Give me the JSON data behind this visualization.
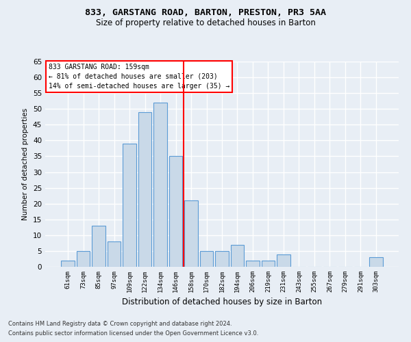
{
  "title": "833, GARSTANG ROAD, BARTON, PRESTON, PR3 5AA",
  "subtitle": "Size of property relative to detached houses in Barton",
  "xlabel": "Distribution of detached houses by size in Barton",
  "ylabel": "Number of detached properties",
  "categories": [
    "61sqm",
    "73sqm",
    "85sqm",
    "97sqm",
    "109sqm",
    "122sqm",
    "134sqm",
    "146sqm",
    "158sqm",
    "170sqm",
    "182sqm",
    "194sqm",
    "206sqm",
    "219sqm",
    "231sqm",
    "243sqm",
    "255sqm",
    "267sqm",
    "279sqm",
    "291sqm",
    "303sqm"
  ],
  "values": [
    2,
    5,
    13,
    8,
    39,
    49,
    52,
    35,
    21,
    5,
    5,
    7,
    2,
    2,
    4,
    0,
    0,
    0,
    0,
    0,
    3
  ],
  "bar_color": "#c9d9e8",
  "bar_edge_color": "#5b9bd5",
  "marker_index": 7.5,
  "ylim": [
    0,
    65
  ],
  "yticks": [
    0,
    5,
    10,
    15,
    20,
    25,
    30,
    35,
    40,
    45,
    50,
    55,
    60,
    65
  ],
  "background_color": "#e8eef5",
  "grid_color": "#ffffff",
  "annotation_line1": "833 GARSTANG ROAD: 159sqm",
  "annotation_line2": "← 81% of detached houses are smaller (203)",
  "annotation_line3": "14% of semi-detached houses are larger (35) →",
  "footer1": "Contains HM Land Registry data © Crown copyright and database right 2024.",
  "footer2": "Contains public sector information licensed under the Open Government Licence v3.0."
}
